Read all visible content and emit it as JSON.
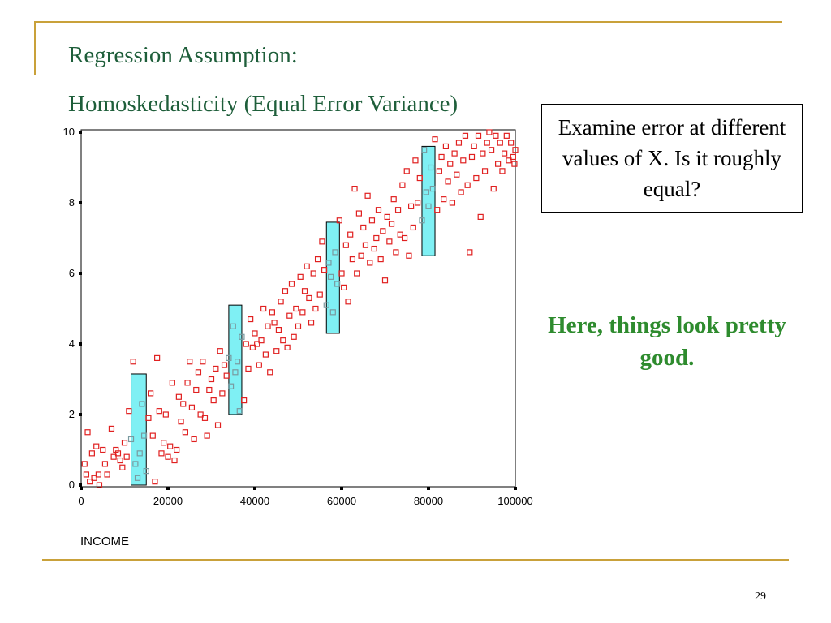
{
  "slide": {
    "title_line1": "Regression Assumption:",
    "title_line2": "Homoskedasticity (Equal Error Variance)",
    "callout_text": "Examine error at different values of X. Is it roughly equal?",
    "comment_text": "Here, things look pretty good.",
    "page_number": "29",
    "colors": {
      "title": "#1e5e3a",
      "rule": "#c9a13a",
      "comment": "#2e8b2e",
      "point": "#e02020",
      "band_fill": "#7ff0f4"
    }
  },
  "chart_data": {
    "type": "scatter",
    "xlabel": "INCOME",
    "ylabel": "",
    "xlim": [
      0,
      100000
    ],
    "ylim": [
      0,
      10
    ],
    "x_ticks": [
      "0",
      "20000",
      "40000",
      "60000",
      "80000",
      "100000"
    ],
    "y_ticks": [
      "0",
      "2",
      "4",
      "6",
      "8",
      "10"
    ],
    "grid": false,
    "points": [
      [
        800,
        0.6
      ],
      [
        1200,
        0.3
      ],
      [
        1500,
        1.5
      ],
      [
        2000,
        0.1
      ],
      [
        2500,
        0.9
      ],
      [
        3000,
        0.2
      ],
      [
        3500,
        1.1
      ],
      [
        4000,
        0.3
      ],
      [
        4200,
        0.0
      ],
      [
        5000,
        1.0
      ],
      [
        5500,
        0.6
      ],
      [
        6000,
        0.3
      ],
      [
        7000,
        1.6
      ],
      [
        7500,
        0.8
      ],
      [
        8000,
        1.0
      ],
      [
        8500,
        0.9
      ],
      [
        9000,
        0.7
      ],
      [
        9500,
        0.5
      ],
      [
        10000,
        1.2
      ],
      [
        10500,
        0.8
      ],
      [
        11000,
        2.1
      ],
      [
        11500,
        1.3
      ],
      [
        12000,
        3.5
      ],
      [
        12500,
        0.6
      ],
      [
        13000,
        0.2
      ],
      [
        13500,
        0.9
      ],
      [
        14000,
        2.3
      ],
      [
        14500,
        1.4
      ],
      [
        15000,
        0.4
      ],
      [
        15500,
        1.9
      ],
      [
        16000,
        2.6
      ],
      [
        16500,
        1.4
      ],
      [
        17000,
        0.1
      ],
      [
        17500,
        3.6
      ],
      [
        18000,
        2.1
      ],
      [
        18500,
        0.9
      ],
      [
        19000,
        1.2
      ],
      [
        19500,
        2.0
      ],
      [
        20000,
        0.8
      ],
      [
        20500,
        1.1
      ],
      [
        21000,
        2.9
      ],
      [
        21500,
        0.7
      ],
      [
        22000,
        1.0
      ],
      [
        22500,
        2.5
      ],
      [
        23000,
        1.8
      ],
      [
        23500,
        2.3
      ],
      [
        24000,
        1.5
      ],
      [
        24500,
        2.9
      ],
      [
        25000,
        3.5
      ],
      [
        25500,
        2.2
      ],
      [
        26000,
        1.3
      ],
      [
        26500,
        2.7
      ],
      [
        27000,
        3.2
      ],
      [
        27500,
        2.0
      ],
      [
        28000,
        3.5
      ],
      [
        28500,
        1.9
      ],
      [
        29000,
        1.4
      ],
      [
        29500,
        2.7
      ],
      [
        30000,
        3.0
      ],
      [
        30500,
        2.4
      ],
      [
        31000,
        3.3
      ],
      [
        31500,
        1.7
      ],
      [
        32000,
        3.8
      ],
      [
        32500,
        2.6
      ],
      [
        33000,
        3.4
      ],
      [
        33500,
        3.1
      ],
      [
        34000,
        3.6
      ],
      [
        34500,
        2.8
      ],
      [
        35000,
        4.5
      ],
      [
        35500,
        3.2
      ],
      [
        36000,
        3.5
      ],
      [
        36500,
        2.1
      ],
      [
        37000,
        4.2
      ],
      [
        37500,
        2.4
      ],
      [
        38000,
        4.0
      ],
      [
        38500,
        3.3
      ],
      [
        39000,
        4.7
      ],
      [
        39500,
        3.9
      ],
      [
        40000,
        4.3
      ],
      [
        40500,
        4.0
      ],
      [
        41000,
        3.4
      ],
      [
        41500,
        4.1
      ],
      [
        42000,
        5.0
      ],
      [
        42500,
        3.7
      ],
      [
        43000,
        4.5
      ],
      [
        43500,
        3.2
      ],
      [
        44000,
        4.9
      ],
      [
        44500,
        4.6
      ],
      [
        45000,
        3.8
      ],
      [
        45500,
        4.4
      ],
      [
        46000,
        5.2
      ],
      [
        46500,
        4.1
      ],
      [
        47000,
        5.5
      ],
      [
        47500,
        3.9
      ],
      [
        48000,
        4.8
      ],
      [
        48500,
        5.7
      ],
      [
        49000,
        4.2
      ],
      [
        49500,
        5.0
      ],
      [
        50000,
        4.5
      ],
      [
        50500,
        5.9
      ],
      [
        51000,
        4.9
      ],
      [
        51500,
        5.5
      ],
      [
        52000,
        6.2
      ],
      [
        52500,
        5.3
      ],
      [
        53000,
        4.6
      ],
      [
        53500,
        6.0
      ],
      [
        54000,
        5.0
      ],
      [
        54500,
        6.4
      ],
      [
        55000,
        5.4
      ],
      [
        55500,
        6.9
      ],
      [
        56000,
        6.1
      ],
      [
        56500,
        5.1
      ],
      [
        57000,
        6.3
      ],
      [
        57500,
        5.9
      ],
      [
        58000,
        4.9
      ],
      [
        58500,
        6.6
      ],
      [
        59000,
        5.7
      ],
      [
        59500,
        7.5
      ],
      [
        60000,
        6.0
      ],
      [
        60500,
        5.6
      ],
      [
        61000,
        6.8
      ],
      [
        61500,
        5.2
      ],
      [
        62000,
        7.1
      ],
      [
        62500,
        6.4
      ],
      [
        63000,
        8.4
      ],
      [
        63500,
        6.0
      ],
      [
        64000,
        7.7
      ],
      [
        64500,
        6.5
      ],
      [
        65000,
        7.3
      ],
      [
        65500,
        6.8
      ],
      [
        66000,
        8.2
      ],
      [
        66500,
        6.3
      ],
      [
        67000,
        7.5
      ],
      [
        67500,
        6.7
      ],
      [
        68000,
        7.0
      ],
      [
        68500,
        7.8
      ],
      [
        69000,
        6.4
      ],
      [
        69500,
        7.2
      ],
      [
        70000,
        5.8
      ],
      [
        70500,
        7.6
      ],
      [
        71000,
        6.9
      ],
      [
        71500,
        7.4
      ],
      [
        72000,
        8.1
      ],
      [
        72500,
        6.6
      ],
      [
        73000,
        7.8
      ],
      [
        73500,
        7.1
      ],
      [
        74000,
        8.5
      ],
      [
        74500,
        7.0
      ],
      [
        75000,
        8.9
      ],
      [
        75500,
        6.5
      ],
      [
        76000,
        7.9
      ],
      [
        76500,
        7.3
      ],
      [
        77000,
        9.2
      ],
      [
        77500,
        8.0
      ],
      [
        78000,
        8.7
      ],
      [
        78500,
        7.5
      ],
      [
        79000,
        9.5
      ],
      [
        79500,
        8.3
      ],
      [
        80000,
        7.9
      ],
      [
        80500,
        9.0
      ],
      [
        81000,
        8.4
      ],
      [
        81500,
        9.8
      ],
      [
        82000,
        7.8
      ],
      [
        82500,
        8.9
      ],
      [
        83000,
        9.3
      ],
      [
        83500,
        8.1
      ],
      [
        84000,
        9.6
      ],
      [
        84500,
        8.6
      ],
      [
        85000,
        9.1
      ],
      [
        85500,
        8.0
      ],
      [
        86000,
        9.4
      ],
      [
        86500,
        8.8
      ],
      [
        87000,
        9.7
      ],
      [
        87500,
        8.3
      ],
      [
        88000,
        9.2
      ],
      [
        88500,
        9.9
      ],
      [
        89000,
        8.5
      ],
      [
        89500,
        6.6
      ],
      [
        90000,
        9.3
      ],
      [
        90500,
        9.6
      ],
      [
        91000,
        8.7
      ],
      [
        91500,
        9.9
      ],
      [
        92000,
        7.6
      ],
      [
        92500,
        9.4
      ],
      [
        93000,
        8.9
      ],
      [
        93500,
        9.7
      ],
      [
        94000,
        10.0
      ],
      [
        94500,
        9.5
      ],
      [
        95000,
        8.4
      ],
      [
        95500,
        9.9
      ],
      [
        96000,
        9.1
      ],
      [
        96500,
        9.7
      ],
      [
        97000,
        8.9
      ],
      [
        97500,
        9.4
      ],
      [
        98000,
        9.9
      ],
      [
        98500,
        9.2
      ],
      [
        99000,
        9.7
      ],
      [
        99500,
        9.3
      ],
      [
        100000,
        9.5
      ],
      [
        99800,
        9.1
      ]
    ],
    "bands": [
      {
        "x": [
          11500,
          15000
        ],
        "y": [
          0.0,
          3.15
        ]
      },
      {
        "x": [
          34000,
          37000
        ],
        "y": [
          2.0,
          5.1
        ]
      },
      {
        "x": [
          56500,
          59500
        ],
        "y": [
          4.3,
          7.45
        ]
      },
      {
        "x": [
          78500,
          81500
        ],
        "y": [
          6.5,
          9.6
        ]
      }
    ]
  }
}
